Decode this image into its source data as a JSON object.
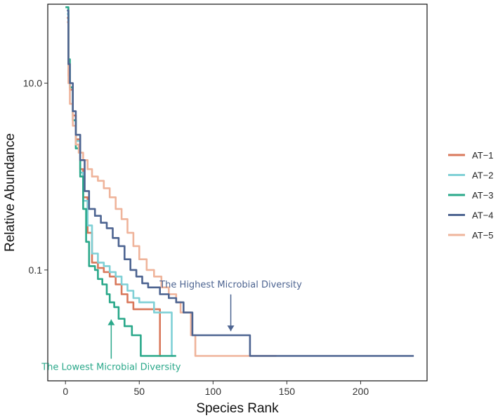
{
  "chart_data": {
    "type": "line",
    "title": "",
    "xlabel": "Species Rank",
    "ylabel": "Relative Abundance",
    "x_scale": "linear",
    "y_scale": "log10",
    "xlim": [
      -12,
      245
    ],
    "ylim": [
      0.0065,
      70
    ],
    "x_ticks": [
      0,
      50,
      100,
      150,
      200
    ],
    "x_tick_labels": [
      "0",
      "50",
      "100",
      "150",
      "200"
    ],
    "y_ticks": [
      10,
      0.1
    ],
    "y_tick_labels": [
      "10.0",
      "0.1"
    ],
    "legend_position": "right",
    "series": [
      {
        "name": "AT−1",
        "color": "#d9785b",
        "points": [
          [
            1,
            50
          ],
          [
            2,
            12
          ],
          [
            3,
            8.5
          ],
          [
            5,
            4.5
          ],
          [
            7,
            2.5
          ],
          [
            10,
            1.2
          ],
          [
            12,
            0.6
          ],
          [
            15,
            0.25
          ],
          [
            18,
            0.12
          ],
          [
            22,
            0.105
          ],
          [
            26,
            0.095
          ],
          [
            30,
            0.085
          ],
          [
            34,
            0.07
          ],
          [
            38,
            0.055
          ],
          [
            42,
            0.045
          ],
          [
            46,
            0.038
          ],
          [
            50,
            0.038
          ],
          [
            55,
            0.038
          ],
          [
            60,
            0.038
          ],
          [
            62,
            0.038
          ],
          [
            63,
            0.038
          ],
          [
            64,
            0.012
          ],
          [
            65,
            0.012
          ]
        ]
      },
      {
        "name": "AT−2",
        "color": "#7fd0d6",
        "points": [
          [
            1,
            55
          ],
          [
            2,
            14
          ],
          [
            3,
            9
          ],
          [
            5,
            4
          ],
          [
            7,
            2.4
          ],
          [
            10,
            1.1
          ],
          [
            12,
            0.55
          ],
          [
            15,
            0.3
          ],
          [
            18,
            0.15
          ],
          [
            22,
            0.12
          ],
          [
            26,
            0.11
          ],
          [
            30,
            0.095
          ],
          [
            34,
            0.085
          ],
          [
            38,
            0.07
          ],
          [
            42,
            0.06
          ],
          [
            46,
            0.05
          ],
          [
            50,
            0.045
          ],
          [
            55,
            0.045
          ],
          [
            60,
            0.035
          ],
          [
            65,
            0.035
          ],
          [
            70,
            0.035
          ],
          [
            71,
            0.035
          ],
          [
            72,
            0.012
          ],
          [
            73,
            0.012
          ]
        ]
      },
      {
        "name": "AT−3",
        "color": "#2aa88a",
        "points": [
          [
            0,
            65
          ],
          [
            2,
            18
          ],
          [
            3,
            9
          ],
          [
            5,
            4
          ],
          [
            7,
            2
          ],
          [
            10,
            1
          ],
          [
            12,
            0.45
          ],
          [
            14,
            0.2
          ],
          [
            16,
            0.11
          ],
          [
            20,
            0.1
          ],
          [
            22,
            0.08
          ],
          [
            25,
            0.07
          ],
          [
            28,
            0.055
          ],
          [
            30,
            0.045
          ],
          [
            33,
            0.04
          ],
          [
            36,
            0.03
          ],
          [
            40,
            0.025
          ],
          [
            45,
            0.02
          ],
          [
            50,
            0.02
          ],
          [
            51,
            0.012
          ],
          [
            60,
            0.012
          ],
          [
            70,
            0.012
          ],
          [
            75,
            0.012
          ]
        ]
      },
      {
        "name": "AT−4",
        "color": "#4d6491",
        "points": [
          [
            1,
            60
          ],
          [
            2,
            16
          ],
          [
            3,
            10
          ],
          [
            5,
            5
          ],
          [
            7,
            2.8
          ],
          [
            10,
            1.5
          ],
          [
            13,
            0.7
          ],
          [
            16,
            0.45
          ],
          [
            20,
            0.38
          ],
          [
            24,
            0.32
          ],
          [
            28,
            0.28
          ],
          [
            32,
            0.22
          ],
          [
            36,
            0.18
          ],
          [
            40,
            0.13
          ],
          [
            44,
            0.1
          ],
          [
            48,
            0.085
          ],
          [
            52,
            0.072
          ],
          [
            56,
            0.065
          ],
          [
            60,
            0.065
          ],
          [
            64,
            0.055
          ],
          [
            70,
            0.05
          ],
          [
            75,
            0.045
          ],
          [
            80,
            0.035
          ],
          [
            85,
            0.035
          ],
          [
            86,
            0.02
          ],
          [
            95,
            0.02
          ],
          [
            105,
            0.02
          ],
          [
            115,
            0.02
          ],
          [
            124,
            0.02
          ],
          [
            125,
            0.012
          ],
          [
            150,
            0.012
          ],
          [
            180,
            0.012
          ],
          [
            210,
            0.012
          ],
          [
            236,
            0.012
          ]
        ]
      },
      {
        "name": "AT−5",
        "color": "#efb49b",
        "points": [
          [
            1,
            45
          ],
          [
            2,
            10
          ],
          [
            3,
            6
          ],
          [
            5,
            3.5
          ],
          [
            7,
            2.2
          ],
          [
            9,
            1.8
          ],
          [
            12,
            1.5
          ],
          [
            15,
            1.2
          ],
          [
            18,
            1
          ],
          [
            22,
            0.9
          ],
          [
            26,
            0.75
          ],
          [
            30,
            0.6
          ],
          [
            34,
            0.45
          ],
          [
            38,
            0.35
          ],
          [
            42,
            0.25
          ],
          [
            46,
            0.18
          ],
          [
            50,
            0.13
          ],
          [
            55,
            0.1
          ],
          [
            60,
            0.085
          ],
          [
            65,
            0.065
          ],
          [
            70,
            0.055
          ],
          [
            75,
            0.045
          ],
          [
            78,
            0.035
          ],
          [
            85,
            0.02
          ],
          [
            88,
            0.012
          ],
          [
            100,
            0.012
          ],
          [
            120,
            0.012
          ],
          [
            140,
            0.012
          ],
          [
            143,
            0.012
          ]
        ]
      }
    ],
    "annotations": [
      {
        "text": "The Highest Microbial Diversity",
        "color": "#4d6491",
        "arrow_x": 112,
        "arrow_y": 0.021,
        "label_x": 112,
        "label_y": 0.065
      },
      {
        "text": "The Lowest Microbial Diversity",
        "color": "#2aa88a",
        "arrow_x": 31,
        "arrow_y": 0.031,
        "label_x": 31,
        "label_y": 0.0085
      }
    ]
  }
}
